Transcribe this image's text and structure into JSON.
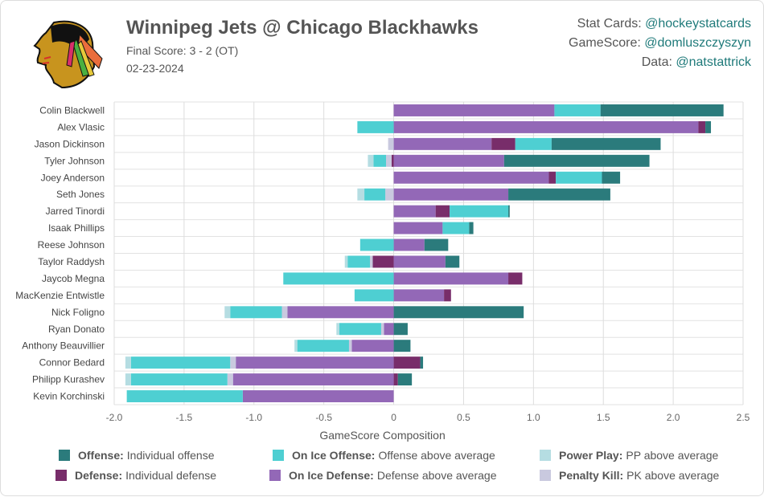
{
  "header": {
    "title": "Winnipeg Jets @ Chicago Blackhawks",
    "final_score": "Final Score: 3 - 2 (OT)",
    "date": "02-23-2024",
    "logo_name": "Chicago Blackhawks"
  },
  "credits": [
    {
      "label": "Stat Cards: ",
      "handle": "@hockeystatcards"
    },
    {
      "label": "GameScore: ",
      "handle": "@domluszczyszyn"
    },
    {
      "label": "Data: ",
      "handle": "@natstattrick"
    }
  ],
  "colors": {
    "offense": "#2b7b7c",
    "on_ice_offense": "#4ecfd2",
    "power_play": "#b5dde2",
    "defense": "#782d6a",
    "on_ice_defense": "#9368b7",
    "penalty_kill": "#c9c9df"
  },
  "legend": [
    {
      "key": "offense",
      "name": "Offense:",
      "desc": "Individual offense"
    },
    {
      "key": "on_ice_offense",
      "name": "On Ice Offense:",
      "desc": "Offense above average"
    },
    {
      "key": "power_play",
      "name": "Power Play:",
      "desc": "PP above average"
    },
    {
      "key": "defense",
      "name": "Defense:",
      "desc": "Individual defense"
    },
    {
      "key": "on_ice_defense",
      "name": "On Ice Defense:",
      "desc": "Defense above average"
    },
    {
      "key": "penalty_kill",
      "name": "Penalty Kill:",
      "desc": "PK above average"
    }
  ],
  "chart_data": {
    "type": "bar",
    "orientation": "horizontal-stacked",
    "xlabel": "GameScore Composition",
    "xlim": [
      -2.0,
      2.5
    ],
    "xticks": [
      -2.0,
      -1.5,
      -1.0,
      -0.5,
      0,
      0.5,
      1.0,
      1.5,
      2.0,
      2.5
    ],
    "xtick_labels": [
      "-2.0",
      "-1.5",
      "-1.0",
      "-0.5",
      "0",
      "0.5",
      "1.0",
      "1.5",
      "2.0",
      "2.5"
    ],
    "grid": true,
    "legend_position": "bottom",
    "series_keys": [
      "offense",
      "on_ice_offense",
      "power_play",
      "defense",
      "on_ice_defense",
      "penalty_kill"
    ],
    "categories": [
      "Colin Blackwell",
      "Alex Vlasic",
      "Jason Dickinson",
      "Tyler Johnson",
      "Joey Anderson",
      "Seth Jones",
      "Jarred Tinordi",
      "Isaak Phillips",
      "Reese Johnson",
      "Taylor Raddysh",
      "Jaycob Megna",
      "MacKenzie Entwistle",
      "Nick Foligno",
      "Ryan Donato",
      "Anthony Beauvillier",
      "Connor Bedard",
      "Philipp Kurashev",
      "Kevin Korchinski"
    ],
    "players": [
      {
        "offense": 0.88,
        "on_ice_offense": 0.33,
        "power_play": 0,
        "defense": 0,
        "on_ice_defense": 1.15,
        "penalty_kill": 0
      },
      {
        "offense": 0.04,
        "on_ice_offense": -0.26,
        "power_play": 0,
        "defense": 0.05,
        "on_ice_defense": 2.18,
        "penalty_kill": 0
      },
      {
        "offense": 0.78,
        "on_ice_offense": 0.26,
        "power_play": 0,
        "defense": 0.17,
        "on_ice_defense": 0.7,
        "penalty_kill": -0.04
      },
      {
        "offense": 1.04,
        "on_ice_offense": -0.09,
        "power_play": -0.04,
        "defense": -0.015,
        "on_ice_defense": 0.79,
        "penalty_kill": -0.04
      },
      {
        "offense": 0.13,
        "on_ice_offense": 0.33,
        "power_play": 0,
        "defense": 0.05,
        "on_ice_defense": 1.11,
        "penalty_kill": 0
      },
      {
        "offense": 0.73,
        "on_ice_offense": -0.15,
        "power_play": -0.05,
        "defense": 0,
        "on_ice_defense": 0.82,
        "penalty_kill": -0.06
      },
      {
        "offense": 0.01,
        "on_ice_offense": 0.42,
        "power_play": 0,
        "defense": 0.1,
        "on_ice_defense": 0.3,
        "penalty_kill": 0
      },
      {
        "offense": 0.03,
        "on_ice_offense": 0.19,
        "power_play": 0,
        "defense": 0,
        "on_ice_defense": 0.35,
        "penalty_kill": 0
      },
      {
        "offense": 0.17,
        "on_ice_offense": -0.24,
        "power_play": 0,
        "defense": 0,
        "on_ice_defense": 0.22,
        "penalty_kill": 0
      },
      {
        "offense": 0.1,
        "on_ice_offense": -0.16,
        "power_play": -0.02,
        "defense": -0.15,
        "on_ice_defense": 0.37,
        "penalty_kill": -0.02
      },
      {
        "offense": 0,
        "on_ice_offense": -0.79,
        "power_play": 0,
        "defense": 0.1,
        "on_ice_defense": 0.82,
        "penalty_kill": 0
      },
      {
        "offense": 0,
        "on_ice_offense": -0.28,
        "power_play": 0,
        "defense": 0.05,
        "on_ice_defense": 0.36,
        "penalty_kill": 0
      },
      {
        "offense": 0.93,
        "on_ice_offense": -0.37,
        "power_play": -0.04,
        "defense": 0,
        "on_ice_defense": -0.76,
        "penalty_kill": -0.04
      },
      {
        "offense": 0.1,
        "on_ice_offense": -0.3,
        "power_play": -0.02,
        "defense": 0,
        "on_ice_defense": -0.07,
        "penalty_kill": -0.02
      },
      {
        "offense": 0.12,
        "on_ice_offense": -0.37,
        "power_play": -0.02,
        "defense": 0,
        "on_ice_defense": -0.3,
        "penalty_kill": -0.02
      },
      {
        "offense": 0.02,
        "on_ice_offense": -0.71,
        "power_play": -0.04,
        "defense": 0.19,
        "on_ice_defense": -1.13,
        "penalty_kill": -0.04
      },
      {
        "offense": 0.1,
        "on_ice_offense": -0.69,
        "power_play": -0.04,
        "defense": 0.03,
        "on_ice_defense": -1.15,
        "penalty_kill": -0.04
      },
      {
        "offense": 0,
        "on_ice_offense": -0.83,
        "power_play": 0,
        "defense": 0,
        "on_ice_defense": -1.08,
        "penalty_kill": 0
      }
    ]
  }
}
